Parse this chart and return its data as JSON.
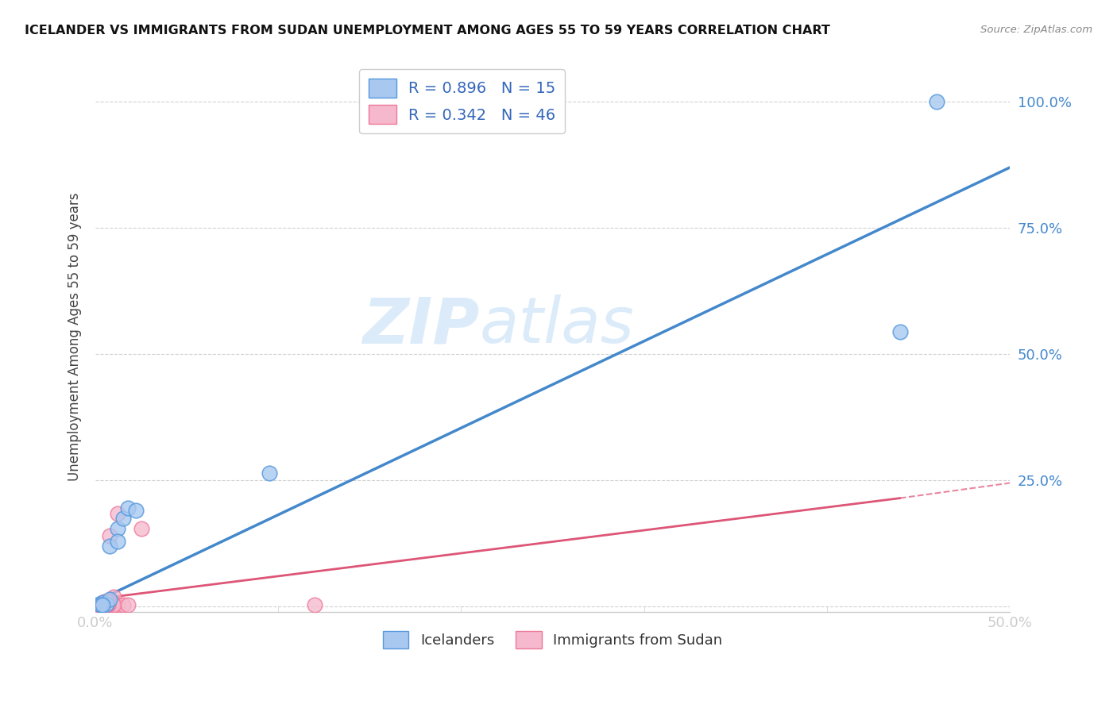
{
  "title": "ICELANDER VS IMMIGRANTS FROM SUDAN UNEMPLOYMENT AMONG AGES 55 TO 59 YEARS CORRELATION CHART",
  "source": "Source: ZipAtlas.com",
  "ylabel": "Unemployment Among Ages 55 to 59 years",
  "xlim": [
    0.0,
    0.5
  ],
  "ylim": [
    -0.01,
    1.08
  ],
  "xticks": [
    0.0,
    0.1,
    0.2,
    0.3,
    0.4,
    0.5
  ],
  "yticks": [
    0.0,
    0.25,
    0.5,
    0.75,
    1.0
  ],
  "xtick_labels": [
    "0.0%",
    "",
    "",
    "",
    "",
    "50.0%"
  ],
  "ytick_labels": [
    "",
    "25.0%",
    "50.0%",
    "75.0%",
    "100.0%"
  ],
  "blue_R": "0.896",
  "blue_N": "15",
  "pink_R": "0.342",
  "pink_N": "46",
  "blue_color": "#a8c8f0",
  "blue_edge_color": "#5599dd",
  "blue_line_color": "#4488cc",
  "pink_color": "#f5b8cc",
  "pink_edge_color": "#ee7799",
  "pink_line_color": "#dd5577",
  "watermark_zip": "ZIP",
  "watermark_atlas": "atlas",
  "legend_labels": [
    "Icelanders",
    "Immigrants from Sudan"
  ],
  "blue_scatter_x": [
    0.002,
    0.004,
    0.006,
    0.008,
    0.012,
    0.015,
    0.008,
    0.018,
    0.022,
    0.012,
    0.003,
    0.095,
    0.44,
    0.46,
    0.004
  ],
  "blue_scatter_y": [
    0.005,
    0.008,
    0.005,
    0.015,
    0.155,
    0.175,
    0.12,
    0.195,
    0.19,
    0.13,
    0.003,
    0.265,
    0.545,
    1.0,
    0.003
  ],
  "pink_scatter_x": [
    0.002,
    0.003,
    0.004,
    0.005,
    0.006,
    0.004,
    0.007,
    0.01,
    0.012,
    0.008,
    0.015,
    0.003,
    0.003,
    0.006,
    0.003,
    0.009,
    0.006,
    0.003,
    0.007,
    0.01,
    0.003,
    0.007,
    0.003,
    0.008,
    0.003,
    0.003,
    0.006,
    0.018,
    0.025,
    0.003,
    0.003,
    0.003,
    0.012,
    0.007,
    0.003,
    0.003,
    0.003,
    0.003,
    0.003,
    0.006,
    0.003,
    0.12,
    0.006,
    0.003,
    0.003,
    0.003
  ],
  "pink_scatter_y": [
    0.003,
    0.005,
    0.003,
    0.01,
    0.003,
    0.005,
    0.01,
    0.02,
    0.003,
    0.01,
    0.003,
    0.003,
    0.003,
    0.003,
    0.003,
    0.003,
    0.003,
    0.003,
    0.003,
    0.003,
    0.005,
    0.01,
    0.003,
    0.14,
    0.003,
    0.003,
    0.003,
    0.003,
    0.155,
    0.003,
    0.003,
    0.003,
    0.185,
    0.003,
    0.003,
    0.003,
    0.003,
    0.003,
    0.003,
    0.003,
    0.003,
    0.003,
    0.003,
    0.003,
    0.003,
    0.003
  ],
  "blue_regression": [
    0.0,
    0.5,
    0.01,
    0.87
  ],
  "pink_regression_solid": [
    0.0,
    0.44,
    0.015,
    0.215
  ],
  "pink_regression_dashed": [
    0.44,
    0.5,
    0.215,
    0.245
  ]
}
